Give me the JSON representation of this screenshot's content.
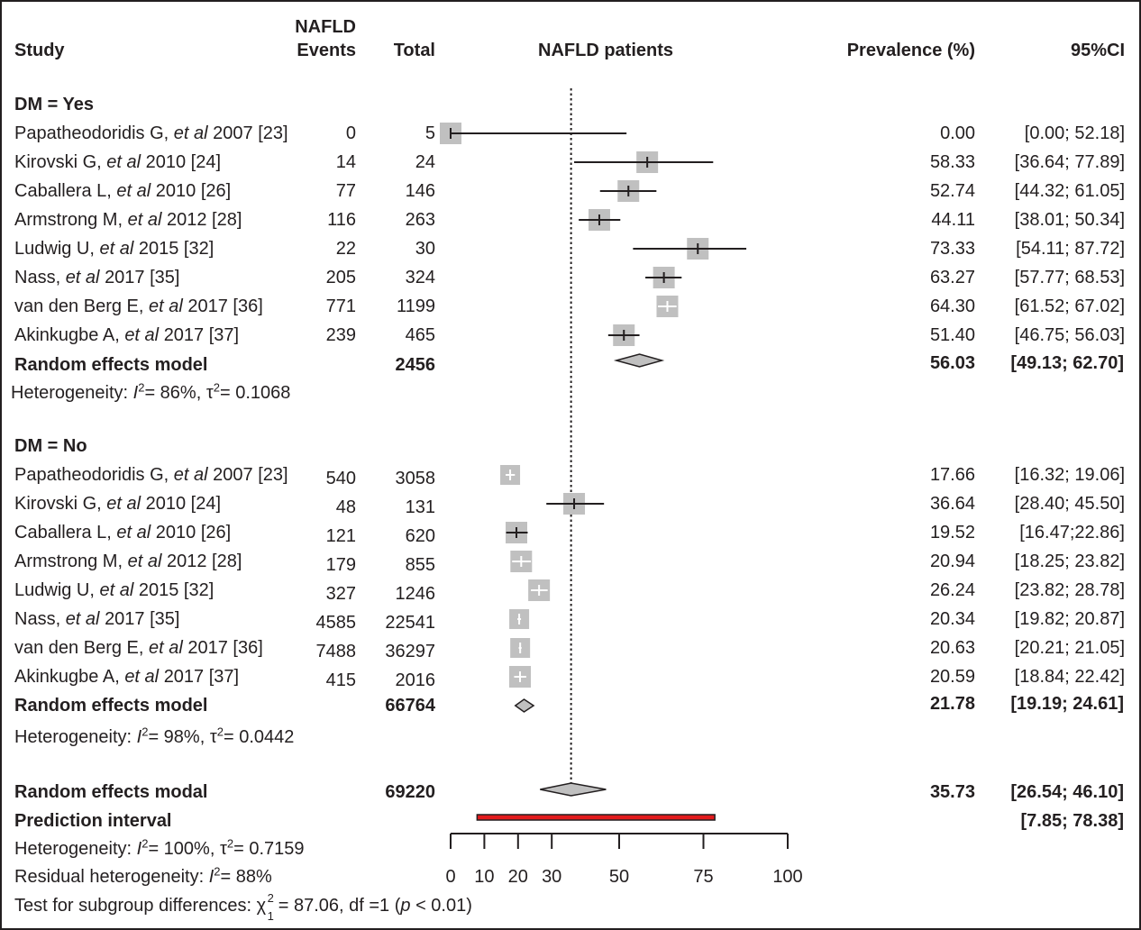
{
  "header": {
    "study": "Study",
    "events_line1": "NAFLD",
    "events_line2": "Events",
    "total": "Total",
    "plot_title": "NAFLD patients",
    "prevalence": "Prevalence (%)",
    "ci": "95%CI"
  },
  "subgroups": [
    {
      "label": "DM = Yes",
      "studies": [
        {
          "author": "Papatheodoridis G,",
          "etal": "et al",
          "year_ref": "2007 [23]",
          "events": "0",
          "total": "5",
          "prev": "0.00",
          "ci": "[0.00; 52.18]"
        },
        {
          "author": "Kirovski G,",
          "etal": "et al",
          "year_ref": "2010 [24]",
          "events": "14",
          "total": "24",
          "prev": "58.33",
          "ci": "[36.64; 77.89]"
        },
        {
          "author": "Caballera L,",
          "etal": "et al",
          "year_ref": "2010 [26]",
          "events": "77",
          "total": "146",
          "prev": "52.74",
          "ci": "[44.32; 61.05]"
        },
        {
          "author": "Armstrong M,",
          "etal": "et al",
          "year_ref": "2012 [28]",
          "events": "116",
          "total": "263",
          "prev": "44.11",
          "ci": "[38.01; 50.34]"
        },
        {
          "author": "Ludwig U,",
          "etal": "et al",
          "year_ref": "2015 [32]",
          "events": "22",
          "total": "30",
          "prev": "73.33",
          "ci": "[54.11; 87.72]"
        },
        {
          "author": "Nass,",
          "etal": "et al",
          "year_ref": "2017 [35]",
          "events": "205",
          "total": "324",
          "prev": "63.27",
          "ci": "[57.77; 68.53]"
        },
        {
          "author": "van den Berg E,",
          "etal": "et al",
          "year_ref": "2017 [36]",
          "events": "771",
          "total": "1199",
          "prev": "64.30",
          "ci": "[61.52; 67.02]"
        },
        {
          "author": "Akinkugbe A,",
          "etal": "et al",
          "year_ref": "2017 [37]",
          "events": "239",
          "total": "465",
          "prev": "51.40",
          "ci": "[46.75; 56.03]"
        }
      ],
      "model": {
        "label": "Random effects model",
        "total": "2456",
        "prev": "56.03",
        "ci": "[49.13; 62.70]"
      },
      "heterogeneity": {
        "prefix": "Heterogeneity: ",
        "i2_sym": "I",
        "i2": "= 86%, ",
        "tau_sym": "τ",
        "tau": "= 0.1068"
      }
    },
    {
      "label": "DM = No",
      "studies": [
        {
          "author": "Papatheodoridis G,",
          "etal": "et al",
          "year_ref": "2007 [23]",
          "events": "540",
          "total": "3058",
          "prev": "17.66",
          "ci": "[16.32; 19.06]"
        },
        {
          "author": "Kirovski G,",
          "etal": "et al",
          "year_ref": "2010 [24]",
          "events": "48",
          "total": "131",
          "prev": "36.64",
          "ci": "[28.40; 45.50]"
        },
        {
          "author": "Caballera L,",
          "etal": "et al",
          "year_ref": "2010 [26]",
          "events": "121",
          "total": "620",
          "prev": "19.52",
          "ci": "[16.47;22.86]"
        },
        {
          "author": "Armstrong M,",
          "etal": "et al",
          "year_ref": "2012 [28]",
          "events": "179",
          "total": "855",
          "prev": "20.94",
          "ci": "[18.25; 23.82]"
        },
        {
          "author": "Ludwig U,",
          "etal": "et al",
          "year_ref": "2015 [32]",
          "events": "327",
          "total": "1246",
          "prev": "26.24",
          "ci": "[23.82; 28.78]"
        },
        {
          "author": "Nass,",
          "etal": "et al",
          "year_ref": "2017 [35]",
          "events": "4585",
          "total": "22541",
          "prev": "20.34",
          "ci": "[19.82; 20.87]"
        },
        {
          "author": "van den Berg E,",
          "etal": "et al",
          "year_ref": "2017 [36]",
          "events": "7488",
          "total": "36297",
          "prev": "20.63",
          "ci": "[20.21; 21.05]"
        },
        {
          "author": "Akinkugbe A,",
          "etal": "et al",
          "year_ref": "2017 [37]",
          "events": "415",
          "total": "2016",
          "prev": "20.59",
          "ci": "[18.84; 22.42]"
        }
      ],
      "model": {
        "label": "Random effects model",
        "total": "66764",
        "prev": "21.78",
        "ci": "[19.19; 24.61]"
      },
      "heterogeneity": {
        "prefix": "Heterogeneity: ",
        "i2_sym": "I",
        "i2": "= 98%, ",
        "tau_sym": "τ",
        "tau": "= 0.0442"
      }
    }
  ],
  "overall": {
    "label": "Random effects modal",
    "total": "69220",
    "prev": "35.73",
    "ci": "[26.54; 46.10]",
    "prediction_label": "Prediction interval",
    "prediction_ci": "[7.85; 78.38]",
    "heterogeneity": {
      "prefix": "Heterogeneity: ",
      "i2_sym": "I",
      "i2": "= 100%, ",
      "tau_sym": "τ",
      "tau": "= 0.7159"
    },
    "residual": {
      "prefix": "Residual heterogeneity: ",
      "i2_sym": "I",
      "i2": "= 88%"
    },
    "test": {
      "prefix": "Test for subgroup differences: ",
      "chi_sym": "χ",
      "chi_sub": "1",
      "chi_val": " = 87.06, df =1 (",
      "p_sym": "p",
      "p_val": " < 0.01)"
    }
  },
  "colors": {
    "square": "#c0c0c0",
    "diamond": "#c0c0c0",
    "prediction": "#e31a1c",
    "line": "#231f20"
  },
  "chart_data": {
    "type": "forest",
    "title": "NAFLD patients",
    "xlabel": "Prevalence (%)",
    "xlim": [
      0,
      100
    ],
    "xticks": [
      0,
      10,
      20,
      30,
      50,
      75,
      100
    ],
    "reference_line": 35.73,
    "series": [
      {
        "name": "DM = Yes",
        "points": [
          {
            "est": 0.0,
            "lo": 0.0,
            "hi": 52.18
          },
          {
            "est": 58.33,
            "lo": 36.64,
            "hi": 77.89
          },
          {
            "est": 52.74,
            "lo": 44.32,
            "hi": 61.05
          },
          {
            "est": 44.11,
            "lo": 38.01,
            "hi": 50.34
          },
          {
            "est": 73.33,
            "lo": 54.11,
            "hi": 87.72
          },
          {
            "est": 63.27,
            "lo": 57.77,
            "hi": 68.53
          },
          {
            "est": 64.3,
            "lo": 61.52,
            "hi": 67.02
          },
          {
            "est": 51.4,
            "lo": 46.75,
            "hi": 56.03
          }
        ],
        "pooled": {
          "est": 56.03,
          "lo": 49.13,
          "hi": 62.7
        }
      },
      {
        "name": "DM = No",
        "points": [
          {
            "est": 17.66,
            "lo": 16.32,
            "hi": 19.06
          },
          {
            "est": 36.64,
            "lo": 28.4,
            "hi": 45.5
          },
          {
            "est": 19.52,
            "lo": 16.47,
            "hi": 22.86
          },
          {
            "est": 20.94,
            "lo": 18.25,
            "hi": 23.82
          },
          {
            "est": 26.24,
            "lo": 23.82,
            "hi": 28.78
          },
          {
            "est": 20.34,
            "lo": 19.82,
            "hi": 20.87
          },
          {
            "est": 20.63,
            "lo": 20.21,
            "hi": 21.05
          },
          {
            "est": 20.59,
            "lo": 18.84,
            "hi": 22.42
          }
        ],
        "pooled": {
          "est": 21.78,
          "lo": 19.19,
          "hi": 24.61
        }
      }
    ],
    "overall": {
      "est": 35.73,
      "lo": 26.54,
      "hi": 46.1
    },
    "prediction_interval": {
      "lo": 7.85,
      "hi": 78.38
    }
  }
}
